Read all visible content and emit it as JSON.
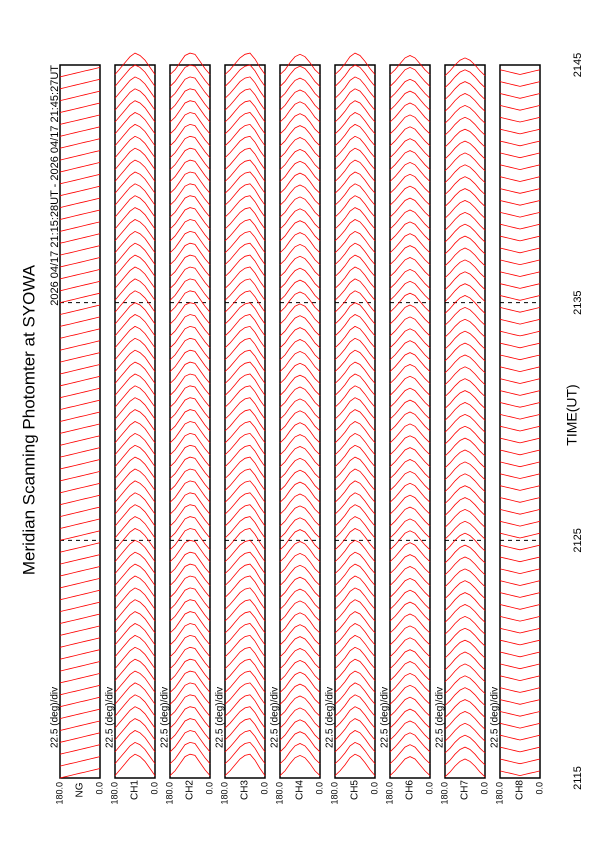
{
  "chart_data": {
    "type": "stackplot",
    "title": "Meridian Scanning Photomter at SYOWA",
    "subtitle": "2026 04/17 21:15:28UT - 2026 04/17 21:45:27UT",
    "x_label": "TIME(UT)",
    "scale_label": "22.5 (deg)/div",
    "xlim": [
      2115,
      2145
    ],
    "xticks": [
      2115,
      2125,
      2135,
      2145
    ],
    "ylim": [
      0,
      180
    ],
    "yticks": [
      {
        "value": 0,
        "label": "0.0"
      },
      {
        "value": 180,
        "label": "180.0"
      }
    ],
    "grid": true,
    "angles": [
      0,
      22.5,
      45,
      67.5,
      90,
      112.5,
      135,
      157.5,
      180
    ],
    "x": [
      2115,
      2115.5,
      2116,
      2116.5,
      2117,
      2117.5,
      2118,
      2118.5,
      2119,
      2119.5,
      2120,
      2120.5,
      2121,
      2121.5,
      2122,
      2122.5,
      2123,
      2123.5,
      2124,
      2124.5,
      2125,
      2125.5,
      2126,
      2126.5,
      2127,
      2127.5,
      2128,
      2128.5,
      2129,
      2129.5,
      2130,
      2130.5,
      2131,
      2131.5,
      2132,
      2132.5,
      2133,
      2133.5,
      2134,
      2134.5,
      2135,
      2135.5,
      2136,
      2136.5,
      2137,
      2137.5,
      2138,
      2138.5,
      2139,
      2139.5,
      2140,
      2140.5,
      2141,
      2141.5,
      2142,
      2142.5,
      2143,
      2143.5,
      2144,
      2144.5
    ],
    "series": [
      {
        "name": "NG",
        "color": "#ff0000",
        "profile": [
          0.4,
          0.35,
          0.3,
          0.25,
          0.2,
          0.15,
          0.1,
          0.05,
          0.0
        ]
      },
      {
        "name": "CH1",
        "color": "#ff0000",
        "profile": [
          0.1,
          0.4,
          0.7,
          0.9,
          1.0,
          0.85,
          0.6,
          0.35,
          0.1
        ]
      },
      {
        "name": "CH2",
        "color": "#ff0000",
        "profile": [
          0.1,
          0.35,
          0.65,
          0.95,
          1.0,
          0.9,
          0.6,
          0.3,
          0.1
        ]
      },
      {
        "name": "CH3",
        "color": "#ff0000",
        "profile": [
          0.1,
          0.4,
          0.75,
          1.0,
          0.95,
          0.8,
          0.55,
          0.3,
          0.1
        ]
      },
      {
        "name": "CH4",
        "color": "#ff0000",
        "profile": [
          0.1,
          0.3,
          0.6,
          0.85,
          0.95,
          0.85,
          0.6,
          0.3,
          0.1
        ]
      },
      {
        "name": "CH5",
        "color": "#ff0000",
        "profile": [
          0.1,
          0.35,
          0.65,
          0.9,
          1.0,
          0.85,
          0.55,
          0.3,
          0.1
        ]
      },
      {
        "name": "CH6",
        "color": "#ff0000",
        "profile": [
          0.1,
          0.3,
          0.55,
          0.8,
          0.9,
          0.8,
          0.55,
          0.3,
          0.1
        ]
      },
      {
        "name": "CH7",
        "color": "#ff0000",
        "profile": [
          0.05,
          0.25,
          0.5,
          0.7,
          0.8,
          0.7,
          0.5,
          0.25,
          0.05
        ]
      },
      {
        "name": "CH8",
        "color": "#ff0000",
        "profile": [
          0.3,
          0.25,
          0.2,
          0.15,
          0.1,
          0.15,
          0.2,
          0.25,
          0.3
        ]
      }
    ]
  }
}
